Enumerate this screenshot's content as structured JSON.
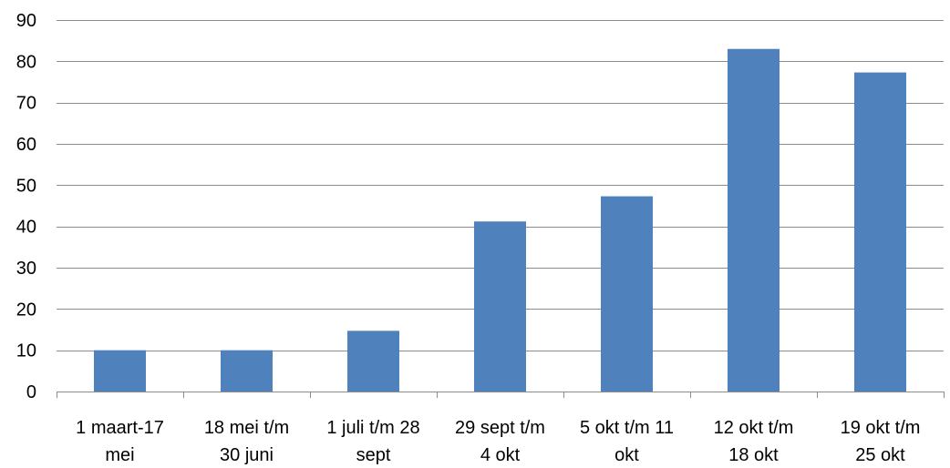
{
  "chart_data": {
    "type": "bar",
    "title": "",
    "xlabel": "",
    "ylabel": "",
    "categories": [
      [
        "1 maart-17",
        "mei"
      ],
      [
        "18 mei t/m",
        "30 juni"
      ],
      [
        "1 juli t/m 28",
        "sept"
      ],
      [
        "29 sept t/m",
        "4 okt"
      ],
      [
        "5 okt t/m 11",
        "okt"
      ],
      [
        "12 okt t/m",
        "18 okt"
      ],
      [
        "19 okt t/m",
        "25 okt"
      ]
    ],
    "values": [
      10,
      10,
      14.7,
      41.2,
      47.3,
      83,
      77.3
    ],
    "ylim": [
      0,
      90
    ],
    "yticks": [
      0,
      10,
      20,
      30,
      40,
      50,
      60,
      70,
      80,
      90
    ],
    "grid": true,
    "legend": "none",
    "bar_color": "#4f81bd"
  }
}
